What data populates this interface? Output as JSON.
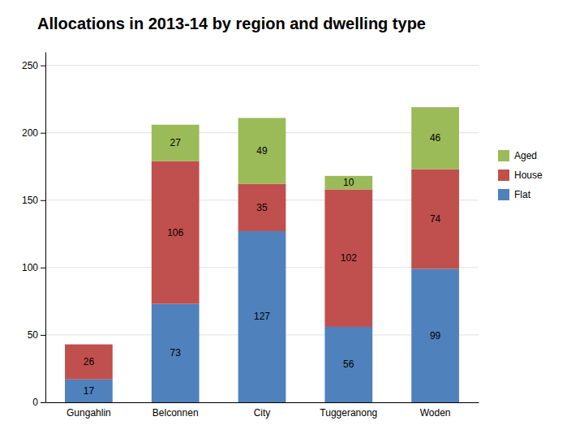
{
  "chart_data": {
    "type": "bar",
    "stacked": true,
    "title": "Allocations in 2013-14 by region and dwelling type",
    "categories": [
      "Gungahlin",
      "Belconnen",
      "City",
      "Tuggeranong",
      "Woden"
    ],
    "series": [
      {
        "name": "Flat",
        "color": "#4F81BD",
        "values": [
          17,
          73,
          127,
          56,
          99
        ]
      },
      {
        "name": "House",
        "color": "#C0504D",
        "values": [
          26,
          106,
          35,
          102,
          74
        ]
      },
      {
        "name": "Aged",
        "color": "#9BBB59",
        "values": [
          0,
          27,
          49,
          10,
          46
        ]
      }
    ],
    "ylim": [
      0,
      260
    ],
    "yticks": [
      0,
      50,
      100,
      150,
      200,
      250
    ],
    "grid": true,
    "legend": "right",
    "data_labels": true
  }
}
